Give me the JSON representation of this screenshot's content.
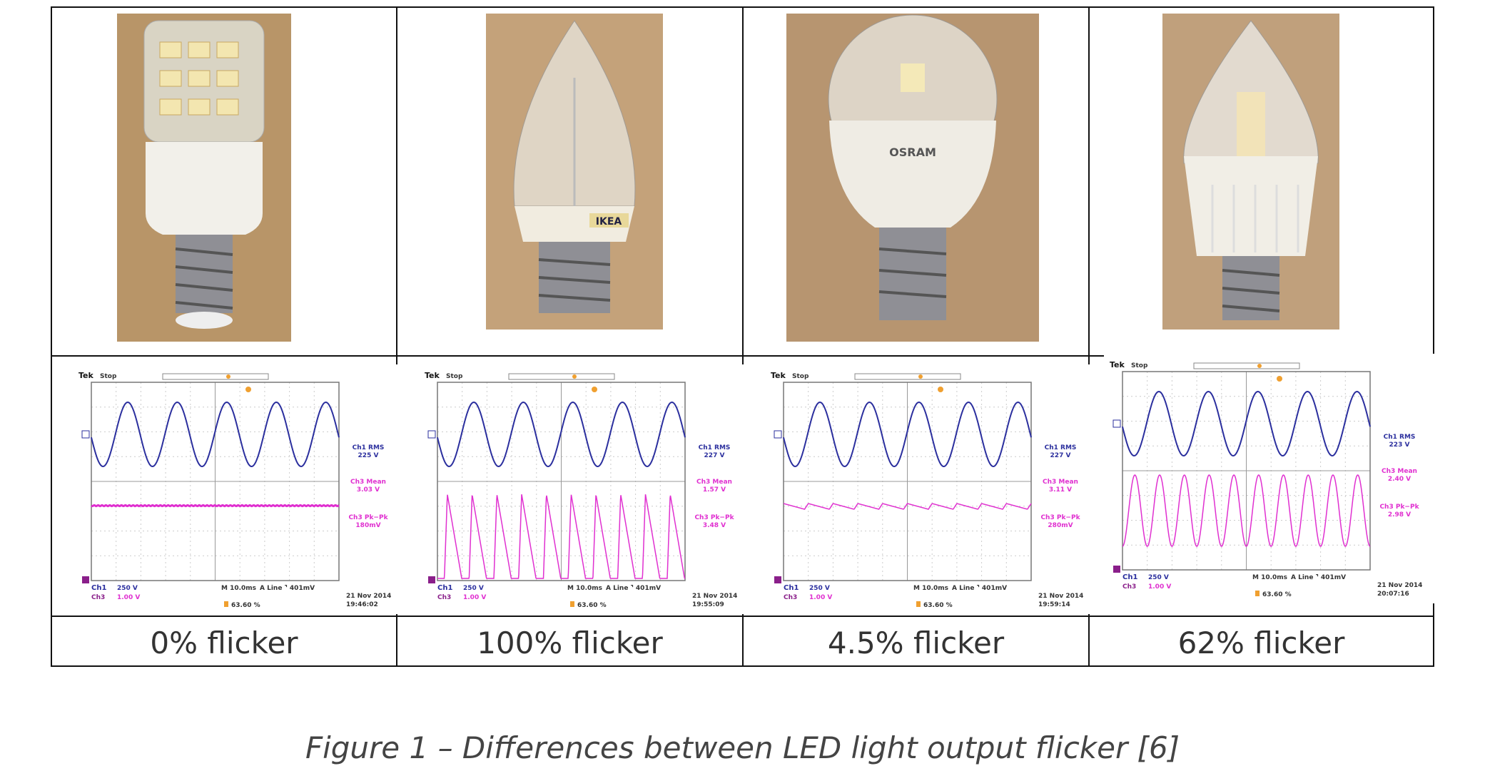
{
  "figure": {
    "caption": "Figure 1 – Differences between LED light output flicker [6]",
    "panels": [
      {
        "flicker_label": "0% flicker",
        "bulb_brand": "",
        "scope": {
          "header": "Tek",
          "status": "Stop",
          "ch1_rms_label": "Ch1 RMS",
          "ch1_rms": "225 V",
          "ch3_mean_label": "Ch3 Mean",
          "ch3_mean": "3.03 V",
          "ch3_pkpk_label": "Ch3 Pk−Pk",
          "ch3_pkpk": "180mV",
          "ch1_label": "Ch1",
          "ch1_scale": "250 V",
          "ch3_label": "Ch3",
          "ch3_scale": "1.00 V",
          "timebase": "M 10.0ms",
          "trigger": "A  Line  ⌝  401mV",
          "cursor": "63.60 %",
          "date": "21 Nov 2014",
          "time": "19:46:02"
        }
      },
      {
        "flicker_label": "100% flicker",
        "bulb_brand": "IKEA",
        "scope": {
          "header": "Tek",
          "status": "Stop",
          "ch1_rms_label": "Ch1 RMS",
          "ch1_rms": "227 V",
          "ch3_mean_label": "Ch3 Mean",
          "ch3_mean": "1.57 V",
          "ch3_pkpk_label": "Ch3 Pk−Pk",
          "ch3_pkpk": "3.48 V",
          "ch1_label": "Ch1",
          "ch1_scale": "250 V",
          "ch3_label": "Ch3",
          "ch3_scale": "1.00 V",
          "timebase": "M 10.0ms",
          "trigger": "A  Line  ⌝  401mV",
          "cursor": "63.60 %",
          "date": "21 Nov 2014",
          "time": "19:55:09"
        }
      },
      {
        "flicker_label": "4.5% flicker",
        "bulb_brand": "OSRAM",
        "scope": {
          "header": "Tek",
          "status": "Stop",
          "ch1_rms_label": "Ch1 RMS",
          "ch1_rms": "227 V",
          "ch3_mean_label": "Ch3 Mean",
          "ch3_mean": "3.11 V",
          "ch3_pkpk_label": "Ch3 Pk−Pk",
          "ch3_pkpk": "280mV",
          "ch1_label": "Ch1",
          "ch1_scale": "250 V",
          "ch3_label": "Ch3",
          "ch3_scale": "1.00 V",
          "timebase": "M 10.0ms",
          "trigger": "A  Line  ⌝  401mV",
          "cursor": "63.60 %",
          "date": "21 Nov 2014",
          "time": "19:59:14"
        }
      },
      {
        "flicker_label": "62% flicker",
        "bulb_brand": "",
        "scope": {
          "header": "Tek",
          "status": "Stop",
          "ch1_rms_label": "Ch1 RMS",
          "ch1_rms": "223 V",
          "ch3_mean_label": "Ch3 Mean",
          "ch3_mean": "2.40 V",
          "ch3_pkpk_label": "Ch3 Pk−Pk",
          "ch3_pkpk": "2.98 V",
          "ch1_label": "Ch1",
          "ch1_scale": "250 V",
          "ch3_label": "Ch3",
          "ch3_scale": "1.00 V",
          "timebase": "M 10.0ms",
          "trigger": "A  Line  ⌝  401mV",
          "cursor": "63.60 %",
          "date": "21 Nov 2014",
          "time": "20:07:16"
        }
      }
    ]
  },
  "colors": {
    "ch1": "#2b2f9e",
    "ch3": "#e030d0",
    "cursor": "#f0a030",
    "border": "#111111"
  }
}
